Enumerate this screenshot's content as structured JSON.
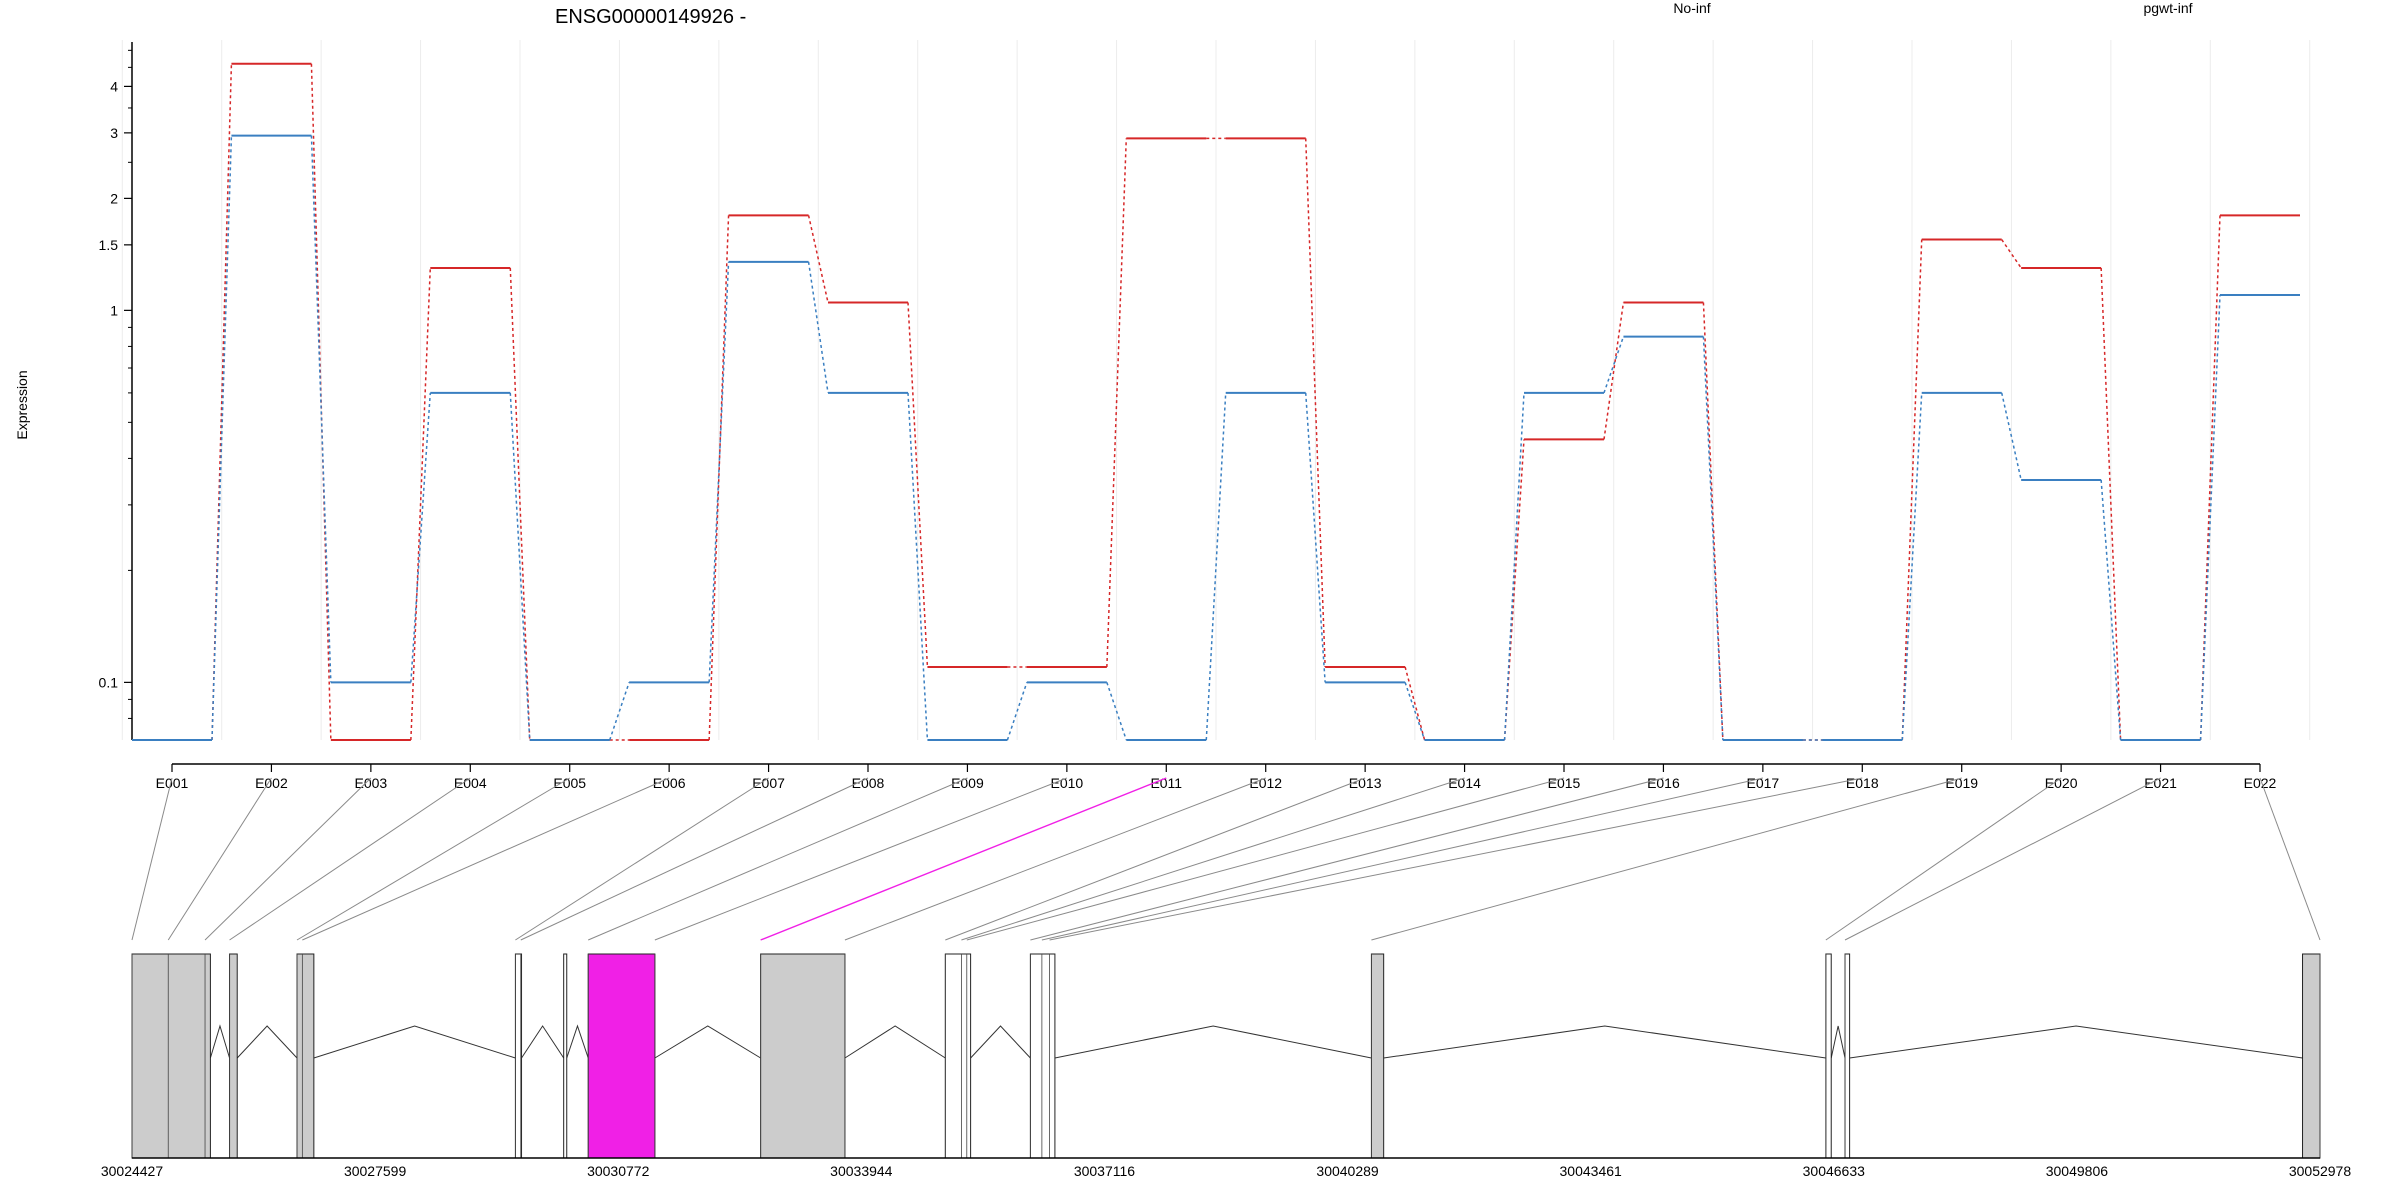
{
  "chart_data": {
    "type": "line",
    "title": "ENSG00000149926 -",
    "ylabel": "Expression",
    "y_scale": "log",
    "ylim": [
      0.07,
      5.2
    ],
    "y_ticks": [
      {
        "value": 0.1,
        "label": "0.1"
      },
      {
        "value": 1,
        "label": "1"
      },
      {
        "value": 1.5,
        "label": "1.5"
      },
      {
        "value": 2,
        "label": "2"
      },
      {
        "value": 3,
        "label": "3"
      },
      {
        "value": 4,
        "label": "4"
      }
    ],
    "categories": [
      "E001",
      "E002",
      "E003",
      "E004",
      "E005",
      "E006",
      "E007",
      "E008",
      "E009",
      "E010",
      "E011",
      "E012",
      "E013",
      "E014",
      "E015",
      "E016",
      "E017",
      "E018",
      "E019",
      "E020",
      "E021",
      "E022"
    ],
    "series": [
      {
        "name": "No-inf",
        "color": "#d62728",
        "values": [
          0.07,
          4.6,
          0.07,
          1.3,
          0.07,
          0.07,
          1.8,
          1.05,
          0.11,
          0.11,
          2.9,
          2.9,
          0.11,
          0.07,
          0.45,
          1.05,
          0.07,
          0.07,
          1.55,
          1.3,
          0.07,
          1.8
        ]
      },
      {
        "name": "pgwt-inf",
        "color": "#3a7fc1",
        "values": [
          0.07,
          2.95,
          0.1,
          0.6,
          0.07,
          0.1,
          1.35,
          0.6,
          0.07,
          0.1,
          0.07,
          0.6,
          0.1,
          0.07,
          0.6,
          0.85,
          0.07,
          0.07,
          0.6,
          0.35,
          0.07,
          1.1
        ]
      }
    ],
    "gene_model": {
      "coord_min": 30024427,
      "coord_max": 30052978,
      "coordinate_labels": [
        "30024427",
        "30027599",
        "30030772",
        "30033944",
        "30037116",
        "30040289",
        "30043461",
        "30046633",
        "30049806",
        "30052978"
      ],
      "highlight_exon": "E011",
      "highlight_color": "#f020e6",
      "exons": [
        {
          "start": 30024427,
          "end": 30025450,
          "fill": "#cccccc"
        },
        {
          "start": 30025700,
          "end": 30025800,
          "fill": "#cccccc"
        },
        {
          "start": 30026580,
          "end": 30026800,
          "fill": "#cccccc"
        },
        {
          "start": 30029430,
          "end": 30029510,
          "fill": "#ffffff"
        },
        {
          "start": 30030060,
          "end": 30030100,
          "fill": "#ffffff"
        },
        {
          "start": 30030380,
          "end": 30031250,
          "fill": "#f020e6"
        },
        {
          "start": 30032630,
          "end": 30033730,
          "fill": "#cccccc"
        },
        {
          "start": 30035040,
          "end": 30035370,
          "fill": "#ffffff"
        },
        {
          "start": 30036150,
          "end": 30036470,
          "fill": "#ffffff"
        },
        {
          "start": 30040600,
          "end": 30040760,
          "fill": "#cccccc"
        },
        {
          "start": 30046530,
          "end": 30046600,
          "fill": "#ffffff"
        },
        {
          "start": 30046780,
          "end": 30046840,
          "fill": "#ffffff"
        },
        {
          "start": 30052750,
          "end": 30052978,
          "fill": "#cccccc"
        }
      ],
      "exon_bounds": [
        30024427,
        30024900,
        30025380,
        30025700,
        30026580,
        30026650,
        30029430,
        30029500,
        30030380,
        30031250,
        30032630,
        30033730,
        30035040,
        30035250,
        30035320,
        30036150,
        30036300,
        30036400,
        30040600,
        30046530,
        30046780,
        30052978
      ]
    }
  }
}
